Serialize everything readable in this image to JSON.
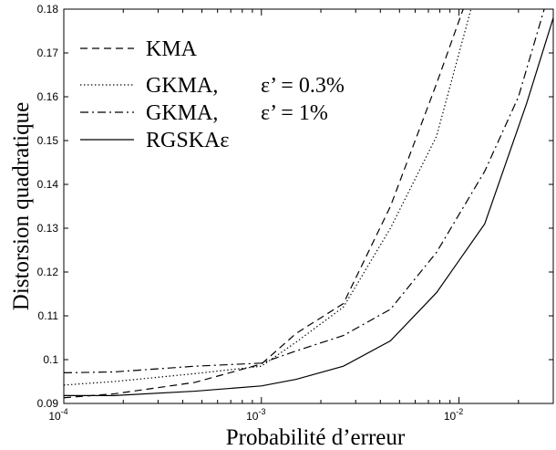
{
  "chart_data": {
    "type": "line",
    "title": "",
    "xlabel": "Probabilité d’erreur",
    "ylabel": "Distorsion quadratique",
    "xscale": "log",
    "xlim": [
      0.0001,
      0.03
    ],
    "ylim": [
      0.09,
      0.18
    ],
    "grid": false,
    "legend_position": "top-left",
    "x_ticks": [
      {
        "value": 0.0001,
        "base": "10",
        "exp": "-4"
      },
      {
        "value": 0.001,
        "base": "10",
        "exp": "-3"
      },
      {
        "value": 0.01,
        "base": "10",
        "exp": "-2"
      }
    ],
    "y_ticks": [
      {
        "value": 0.09,
        "label": "0.09"
      },
      {
        "value": 0.1,
        "label": "0.1"
      },
      {
        "value": 0.11,
        "label": "0.11"
      },
      {
        "value": 0.12,
        "label": "0.12"
      },
      {
        "value": 0.13,
        "label": "0.13"
      },
      {
        "value": 0.14,
        "label": "0.14"
      },
      {
        "value": 0.15,
        "label": "0.15"
      },
      {
        "value": 0.16,
        "label": "0.16"
      },
      {
        "value": 0.17,
        "label": "0.17"
      },
      {
        "value": 0.18,
        "label": "0.18"
      }
    ],
    "series": [
      {
        "name": "KMA",
        "style": "dashed",
        "color": "#000000",
        "points": [
          [
            0.0001,
            0.0913
          ],
          [
            0.00018,
            0.0922
          ],
          [
            0.00046,
            0.0948
          ],
          [
            0.001,
            0.099
          ],
          [
            0.0015,
            0.106
          ],
          [
            0.0026,
            0.1128
          ],
          [
            0.0045,
            0.135
          ],
          [
            0.0077,
            0.163
          ],
          [
            0.0105,
            0.18
          ]
        ]
      },
      {
        "name": "GKMA,",
        "epsilon": "ε’ = 0.3%",
        "style": "dotted",
        "color": "#000000",
        "points": [
          [
            0.0001,
            0.0942
          ],
          [
            0.00018,
            0.095
          ],
          [
            0.00046,
            0.0968
          ],
          [
            0.001,
            0.0985
          ],
          [
            0.0015,
            0.104
          ],
          [
            0.0026,
            0.112
          ],
          [
            0.0045,
            0.13
          ],
          [
            0.0077,
            0.151
          ],
          [
            0.0115,
            0.18
          ]
        ]
      },
      {
        "name": "GKMA,",
        "epsilon": "ε’ = 1%",
        "style": "dashdot",
        "color": "#000000",
        "points": [
          [
            0.0001,
            0.097
          ],
          [
            0.00018,
            0.0972
          ],
          [
            0.00046,
            0.0985
          ],
          [
            0.001,
            0.0992
          ],
          [
            0.0015,
            0.102
          ],
          [
            0.0026,
            0.1055
          ],
          [
            0.0045,
            0.1115
          ],
          [
            0.0077,
            0.1245
          ],
          [
            0.0135,
            0.143
          ],
          [
            0.02,
            0.16
          ],
          [
            0.027,
            0.18
          ]
        ]
      },
      {
        "name": "RGSKAε",
        "style": "solid",
        "color": "#000000",
        "points": [
          [
            0.0001,
            0.0918
          ],
          [
            0.00018,
            0.0918
          ],
          [
            0.00046,
            0.0928
          ],
          [
            0.001,
            0.094
          ],
          [
            0.0015,
            0.0955
          ],
          [
            0.0026,
            0.0985
          ],
          [
            0.0045,
            0.1043
          ],
          [
            0.0077,
            0.1153
          ],
          [
            0.0135,
            0.131
          ],
          [
            0.022,
            0.1585
          ],
          [
            0.03,
            0.178
          ]
        ]
      }
    ]
  }
}
